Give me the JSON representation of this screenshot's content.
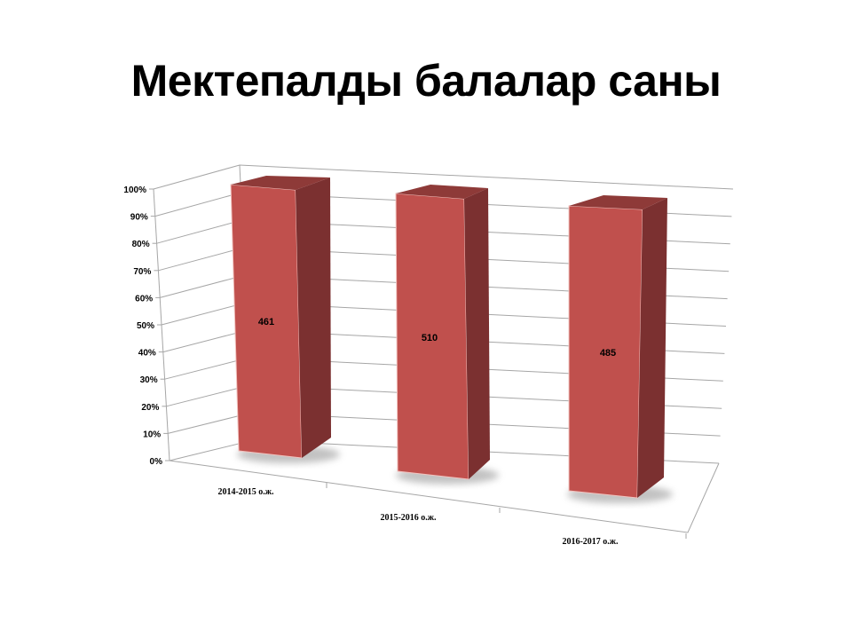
{
  "title": "Мектепалды балалар саны",
  "chart_data": {
    "type": "bar",
    "subtype": "3d-stacked-100-percent-column",
    "title": "Мектепалды балалар саны",
    "categories": [
      "2014-2015 о.ж.",
      "2015-2016 о.ж.",
      "2016-2017 о.ж."
    ],
    "series": [
      {
        "values": [
          461,
          510,
          485
        ],
        "data_labels": [
          "461",
          "510",
          "485"
        ]
      }
    ],
    "percent_of_total": [
      100,
      100,
      100
    ],
    "ylim": [
      0,
      100
    ],
    "y_ticks": [
      "0%",
      "10%",
      "20%",
      "30%",
      "40%",
      "50%",
      "60%",
      "70%",
      "80%",
      "90%",
      "100%"
    ],
    "grid": true,
    "legend": "none",
    "colors": {
      "bar_front": "#c0504d",
      "bar_side": "#7b3030",
      "bar_top": "#8e3a38",
      "grid": "#a6a6a6"
    }
  }
}
